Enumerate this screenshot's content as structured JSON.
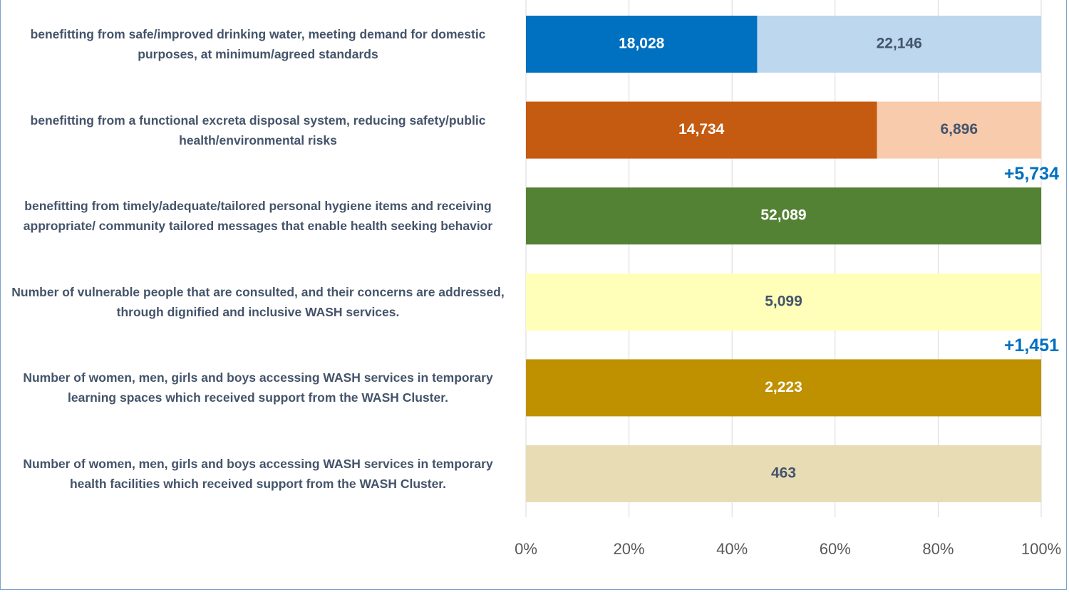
{
  "chart_data": {
    "type": "bar",
    "orientation": "horizontal",
    "stacking": "percent",
    "categories": [
      "benefitting from safe/improved drinking water, meeting demand for domestic purposes, at minimum/agreed standards",
      "benefitting from a functional excreta disposal system, reducing safety/public health/environmental risks",
      "benefitting from timely/adequate/tailored personal hygiene items and receiving appropriate/ community tailored messages that enable health seeking behavior",
      "Number of vulnerable people that are consulted, and their concerns are addressed, through dignified and inclusive WASH services.",
      "Number of women, men, girls and boys accessing WASH services in temporary learning spaces which received support from the WASH Cluster.",
      "Number of women, men, girls and boys accessing WASH services in temporary health facilities which received support from the WASH Cluster."
    ],
    "series": [
      {
        "values": [
          18028,
          14734,
          52089,
          5099,
          2223,
          463
        ],
        "value_labels": [
          "18,028",
          "14,734",
          "52,089",
          "5,099",
          "2,223",
          "463"
        ],
        "colors": [
          "#0070c0",
          "#c55a11",
          "#548235",
          "#ffffb9",
          "#bf9000",
          "#e8dcb5"
        ],
        "label_colors": [
          "#ffffff",
          "#ffffff",
          "#ffffff",
          "#44546a",
          "#ffffff",
          "#44546a"
        ]
      },
      {
        "values": [
          22146,
          6896,
          null,
          null,
          null,
          null
        ],
        "value_labels": [
          "22,146",
          "6,896",
          null,
          null,
          null,
          null
        ],
        "colors": [
          "#bdd7ee",
          "#f8cbad",
          null,
          null,
          null,
          null
        ],
        "label_colors": [
          "#44546a",
          "#44546a",
          null,
          null,
          null,
          null
        ]
      }
    ],
    "annotations": [
      {
        "text": "+5,734",
        "category": 2
      },
      {
        "text": "+1,451",
        "category": 4
      }
    ],
    "xlim": [
      0,
      100
    ],
    "xticks": [
      {
        "value": 0,
        "label": "0%"
      },
      {
        "value": 20,
        "label": "20%"
      },
      {
        "value": 40,
        "label": "40%"
      },
      {
        "value": 60,
        "label": "60%"
      },
      {
        "value": 80,
        "label": "80%"
      },
      {
        "value": 100,
        "label": "100%"
      }
    ],
    "grid": true
  }
}
